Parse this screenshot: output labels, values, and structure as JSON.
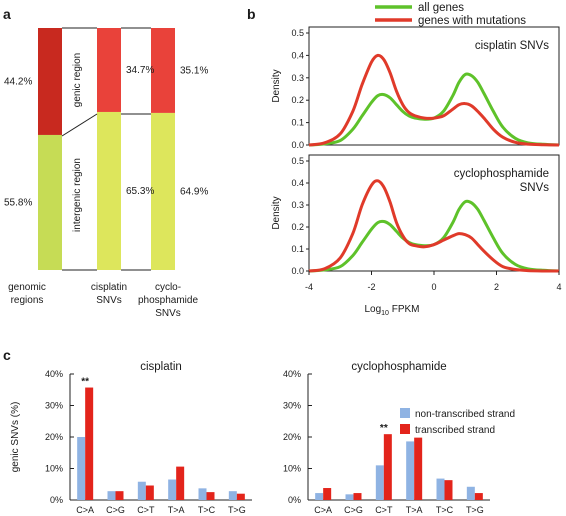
{
  "colors": {
    "green": "#5ec22a",
    "red": "#e03a2a",
    "genic": "#c8291f",
    "genic_light": "#e9423a",
    "intergenic": "#c6dc55",
    "intergenic_light": "#dde65c",
    "blue": "#8fb3e3",
    "bar_red": "#e3241b"
  },
  "panel_labels": {
    "a": "a",
    "b": "b",
    "c": "c"
  },
  "chart_data": [
    {
      "id": "a",
      "type": "bar",
      "stacked": true,
      "categories": [
        "genomic regions",
        "cisplatin SNVs",
        "cyclo-phosphamide SNVs"
      ],
      "category_lines": [
        [
          "genomic",
          "regions"
        ],
        [
          "cisplatin",
          "SNVs"
        ],
        [
          "cyclo-",
          "phosphamide",
          "SNVs"
        ]
      ],
      "series": [
        {
          "name": "genic region",
          "values": [
            44.2,
            34.7,
            35.1
          ],
          "labels": [
            "44.2%",
            "34.7%",
            "35.1%"
          ]
        },
        {
          "name": "intergenic region",
          "values": [
            55.8,
            65.3,
            64.9
          ],
          "labels": [
            "55.8%",
            "65.3%",
            "64.9%"
          ]
        }
      ],
      "ylim": [
        0,
        100
      ],
      "region_labels": [
        "genic region",
        "intergenic region"
      ]
    },
    {
      "id": "b",
      "type": "line",
      "legend": [
        "all genes",
        "genes with mutations"
      ],
      "legend_position": "top",
      "xlabel": "Log",
      "xlabel_sub": "10",
      "xlabel_tail": " FPKM",
      "xlim": [
        -4,
        4
      ],
      "xticks": [
        -4,
        -2,
        0,
        2,
        4
      ],
      "subplots": [
        {
          "title_lines": [
            "cisplatin SNVs"
          ],
          "ylabel": "Density",
          "ylim": [
            0,
            0.5
          ],
          "yticks": [
            0,
            0.1,
            0.2,
            0.3,
            0.4,
            0.5
          ],
          "yticklabels": [
            "0.0",
            "0.1",
            "0.2",
            "0.3",
            "0.4",
            "0.5"
          ],
          "series": [
            {
              "name": "all genes",
              "x": [
                -4.0,
                -3.5,
                -3.0,
                -2.6,
                -2.3,
                -2.0,
                -1.8,
                -1.6,
                -1.4,
                -1.2,
                -1.0,
                -0.8,
                -0.6,
                -0.3,
                0.0,
                0.3,
                0.6,
                0.8,
                1.0,
                1.2,
                1.4,
                1.6,
                1.9,
                2.2,
                2.6,
                3.0,
                3.5,
                4.0
              ],
              "y": [
                0.0,
                0.005,
                0.02,
                0.07,
                0.13,
                0.19,
                0.22,
                0.225,
                0.21,
                0.18,
                0.15,
                0.13,
                0.12,
                0.115,
                0.12,
                0.15,
                0.22,
                0.28,
                0.315,
                0.31,
                0.28,
                0.23,
                0.15,
                0.08,
                0.03,
                0.01,
                0.003,
                0.0
              ]
            },
            {
              "name": "genes with mutations",
              "x": [
                -4.0,
                -3.5,
                -3.0,
                -2.6,
                -2.3,
                -2.0,
                -1.8,
                -1.6,
                -1.4,
                -1.2,
                -1.0,
                -0.8,
                -0.6,
                -0.3,
                0.0,
                0.3,
                0.6,
                0.8,
                1.0,
                1.2,
                1.4,
                1.6,
                1.9,
                2.2,
                2.6,
                3.0,
                3.5,
                4.0
              ],
              "y": [
                0.0,
                0.01,
                0.05,
                0.15,
                0.27,
                0.37,
                0.4,
                0.38,
                0.32,
                0.24,
                0.18,
                0.145,
                0.13,
                0.12,
                0.12,
                0.13,
                0.16,
                0.18,
                0.185,
                0.175,
                0.15,
                0.12,
                0.07,
                0.035,
                0.012,
                0.004,
                0.001,
                0.0
              ]
            }
          ]
        },
        {
          "title_lines": [
            "cyclophosphamide",
            "SNVs"
          ],
          "ylabel": "Density",
          "ylim": [
            0,
            0.5
          ],
          "yticks": [
            0,
            0.1,
            0.2,
            0.3,
            0.4,
            0.5
          ],
          "yticklabels": [
            "0.0",
            "0.1",
            "0.2",
            "0.3",
            "0.4",
            "0.5"
          ],
          "series": [
            {
              "name": "all genes",
              "x": [
                -4.0,
                -3.5,
                -3.0,
                -2.6,
                -2.3,
                -2.0,
                -1.8,
                -1.6,
                -1.4,
                -1.2,
                -1.0,
                -0.8,
                -0.6,
                -0.3,
                0.0,
                0.3,
                0.6,
                0.8,
                1.0,
                1.2,
                1.4,
                1.6,
                1.9,
                2.2,
                2.6,
                3.0,
                3.5,
                4.0
              ],
              "y": [
                0.0,
                0.005,
                0.02,
                0.07,
                0.13,
                0.19,
                0.22,
                0.225,
                0.21,
                0.18,
                0.15,
                0.13,
                0.12,
                0.115,
                0.12,
                0.15,
                0.22,
                0.28,
                0.315,
                0.31,
                0.28,
                0.23,
                0.15,
                0.08,
                0.03,
                0.01,
                0.003,
                0.0
              ]
            },
            {
              "name": "genes with mutations",
              "x": [
                -4.0,
                -3.5,
                -3.0,
                -2.6,
                -2.3,
                -2.0,
                -1.8,
                -1.6,
                -1.4,
                -1.2,
                -1.0,
                -0.8,
                -0.6,
                -0.3,
                0.0,
                0.3,
                0.6,
                0.8,
                1.0,
                1.2,
                1.4,
                1.6,
                1.9,
                2.2,
                2.6,
                3.0,
                3.5,
                4.0
              ],
              "y": [
                0.0,
                0.01,
                0.06,
                0.17,
                0.3,
                0.39,
                0.41,
                0.38,
                0.31,
                0.22,
                0.16,
                0.125,
                0.115,
                0.11,
                0.12,
                0.14,
                0.16,
                0.17,
                0.165,
                0.15,
                0.12,
                0.09,
                0.05,
                0.02,
                0.007,
                0.002,
                0.0,
                0.0
              ]
            }
          ]
        }
      ]
    },
    {
      "id": "c",
      "type": "bar",
      "ylabel": "genic SNVs (%)",
      "ylim": [
        0,
        40
      ],
      "yticks": [
        0,
        10,
        20,
        30,
        40
      ],
      "yticklabels": [
        "0%",
        "10%",
        "20%",
        "30%",
        "40%"
      ],
      "legend": [
        "non-transcribed strand",
        "transcribed strand"
      ],
      "legend_position": "top-right",
      "subplots": [
        {
          "title": "cisplatin",
          "categories": [
            "C>A",
            "C>G",
            "C>T",
            "T>A",
            "T>C",
            "T>G"
          ],
          "series": [
            {
              "name": "non-transcribed strand",
              "values": [
                20.0,
                2.8,
                5.8,
                6.5,
                3.7,
                2.8
              ]
            },
            {
              "name": "transcribed strand",
              "values": [
                35.7,
                2.8,
                4.6,
                10.6,
                2.5,
                2.0
              ]
            }
          ],
          "annotations": [
            {
              "category": "C>A",
              "text": "**"
            }
          ]
        },
        {
          "title": "cyclophosphamide",
          "categories": [
            "C>A",
            "C>G",
            "C>T",
            "T>A",
            "T>C",
            "T>G"
          ],
          "series": [
            {
              "name": "non-transcribed strand",
              "values": [
                2.2,
                1.8,
                11.0,
                18.6,
                6.8,
                4.2
              ]
            },
            {
              "name": "transcribed strand",
              "values": [
                3.8,
                2.2,
                20.9,
                19.8,
                6.3,
                2.2
              ]
            }
          ],
          "annotations": [
            {
              "category": "C>T",
              "text": "**"
            }
          ]
        }
      ]
    }
  ]
}
